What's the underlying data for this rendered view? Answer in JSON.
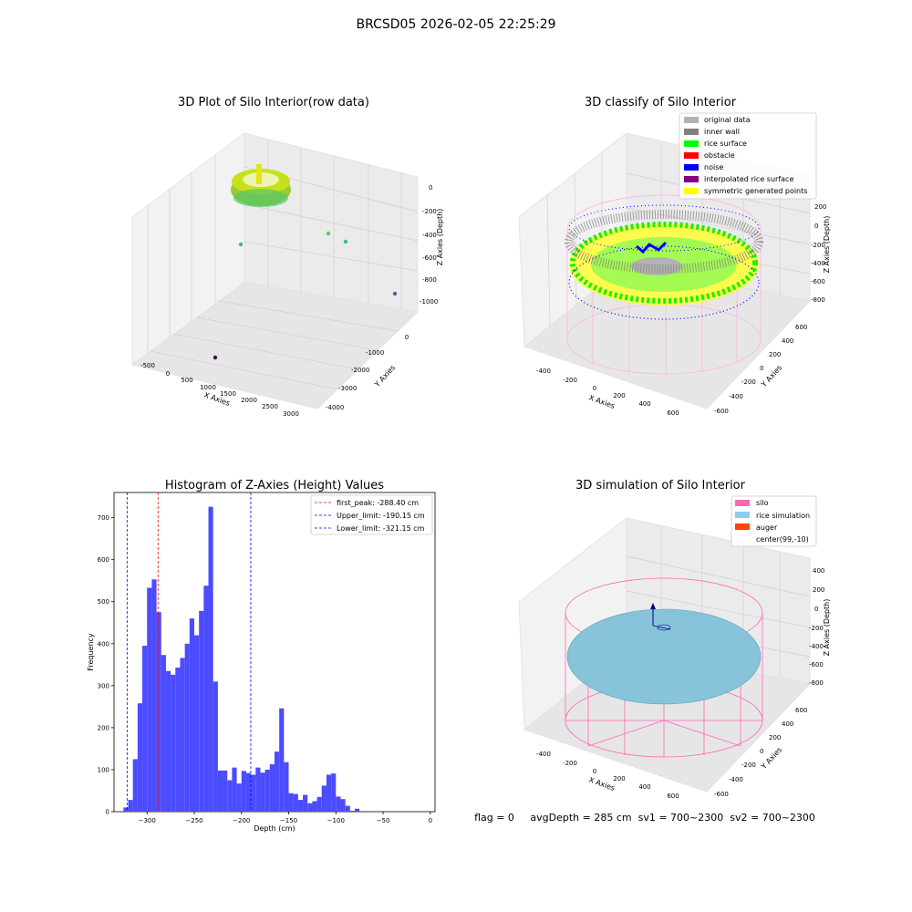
{
  "figure": {
    "suptitle": "BRCSD05 2026-02-05 22:25:29",
    "status_line": "flag = 0     avgDepth = 285 cm  sv1 = 700~2300  sv2 = 700~2300"
  },
  "panels": {
    "raw": {
      "title": "3D Plot of Silo Interior(row data)",
      "xlabel": "X Axies",
      "ylabel": "Y Axies",
      "zlabel": "Z Axies (Depth)",
      "xticks": [
        "-500",
        "0",
        "500",
        "1000",
        "1500",
        "2000",
        "2500",
        "3000"
      ],
      "yticks": [
        "0",
        "-1000",
        "-2000",
        "-3000",
        "-4000"
      ],
      "zticks": [
        "0",
        "-200",
        "-400",
        "-600",
        "-800",
        "-1000"
      ]
    },
    "classify": {
      "title": "3D classify of Silo Interior",
      "xlabel": "X Axies",
      "ylabel": "Y Axies",
      "zlabel": "Z Axies (Depth)",
      "xticks": [
        "-400",
        "-200",
        "0",
        "200",
        "400",
        "600"
      ],
      "yticks": [
        "600",
        "400",
        "200",
        "0",
        "-200",
        "-400",
        "-600"
      ],
      "zticks": [
        "200",
        "0",
        "-200",
        "-400",
        "-600",
        "-800"
      ],
      "legend": [
        {
          "label": "original data",
          "color": "#b3b3b3"
        },
        {
          "label": "inner wall",
          "color": "#808080"
        },
        {
          "label": "rice surface",
          "color": "#00ff00"
        },
        {
          "label": "obstacle",
          "color": "#ff0000"
        },
        {
          "label": "noise",
          "color": "#0000ff"
        },
        {
          "label": "interpolated rice surface",
          "color": "#800080"
        },
        {
          "label": "symmetric generated points",
          "color": "#ffff00"
        }
      ]
    },
    "simulation": {
      "title": "3D simulation of Silo Interior",
      "xlabel": "X Axies",
      "ylabel": "Y Axies",
      "zlabel": "Z Axies (Depth)",
      "xticks": [
        "-400",
        "-200",
        "0",
        "200",
        "400",
        "600"
      ],
      "yticks": [
        "600",
        "400",
        "200",
        "0",
        "-200",
        "-400",
        "-600"
      ],
      "zticks": [
        "400",
        "200",
        "0",
        "-200",
        "-400",
        "-600",
        "-800"
      ],
      "legend": [
        {
          "label": "silo",
          "color": "#ff69b4"
        },
        {
          "label": "rice simulation",
          "color": "#87ceeb"
        },
        {
          "label": "auger",
          "color": "#ff4500"
        },
        {
          "label": "center(99,-10)",
          "color": ""
        }
      ]
    }
  },
  "chart_data": [
    {
      "type": "histogram",
      "title": "Histogram of Z-Axies (Height) Values",
      "xlabel": "Depth (cm)",
      "ylabel": "Frequency",
      "xlim": [
        -335,
        5
      ],
      "ylim": [
        0,
        760
      ],
      "bin_width": 5,
      "xticks": [
        -300,
        -250,
        -200,
        -150,
        -100,
        -50,
        0
      ],
      "yticks": [
        0,
        100,
        200,
        300,
        400,
        500,
        600,
        700
      ],
      "bar_color": "#4b4bff",
      "bins": [
        {
          "x0": -325,
          "x1": -320,
          "count": 10
        },
        {
          "x0": -320,
          "x1": -315,
          "count": 28
        },
        {
          "x0": -315,
          "x1": -310,
          "count": 125
        },
        {
          "x0": -310,
          "x1": -305,
          "count": 258
        },
        {
          "x0": -305,
          "x1": -300,
          "count": 395
        },
        {
          "x0": -300,
          "x1": -295,
          "count": 533
        },
        {
          "x0": -295,
          "x1": -290,
          "count": 553
        },
        {
          "x0": -290,
          "x1": -285,
          "count": 475
        },
        {
          "x0": -285,
          "x1": -280,
          "count": 373
        },
        {
          "x0": -280,
          "x1": -275,
          "count": 335
        },
        {
          "x0": -275,
          "x1": -270,
          "count": 326
        },
        {
          "x0": -270,
          "x1": -265,
          "count": 343
        },
        {
          "x0": -265,
          "x1": -260,
          "count": 366
        },
        {
          "x0": -260,
          "x1": -255,
          "count": 400
        },
        {
          "x0": -255,
          "x1": -250,
          "count": 460
        },
        {
          "x0": -250,
          "x1": -245,
          "count": 420
        },
        {
          "x0": -245,
          "x1": -240,
          "count": 478
        },
        {
          "x0": -240,
          "x1": -235,
          "count": 538
        },
        {
          "x0": -235,
          "x1": -230,
          "count": 726
        },
        {
          "x0": -230,
          "x1": -225,
          "count": 310
        },
        {
          "x0": -225,
          "x1": -220,
          "count": 98
        },
        {
          "x0": -220,
          "x1": -215,
          "count": 98
        },
        {
          "x0": -215,
          "x1": -210,
          "count": 75
        },
        {
          "x0": -210,
          "x1": -205,
          "count": 105
        },
        {
          "x0": -205,
          "x1": -200,
          "count": 67
        },
        {
          "x0": -200,
          "x1": -195,
          "count": 97
        },
        {
          "x0": -195,
          "x1": -190,
          "count": 92
        },
        {
          "x0": -190,
          "x1": -185,
          "count": 88
        },
        {
          "x0": -185,
          "x1": -180,
          "count": 105
        },
        {
          "x0": -180,
          "x1": -175,
          "count": 93
        },
        {
          "x0": -175,
          "x1": -170,
          "count": 100
        },
        {
          "x0": -170,
          "x1": -165,
          "count": 113
        },
        {
          "x0": -165,
          "x1": -160,
          "count": 143
        },
        {
          "x0": -160,
          "x1": -155,
          "count": 246
        },
        {
          "x0": -155,
          "x1": -150,
          "count": 118
        },
        {
          "x0": -150,
          "x1": -145,
          "count": 44
        },
        {
          "x0": -145,
          "x1": -140,
          "count": 42
        },
        {
          "x0": -140,
          "x1": -135,
          "count": 28
        },
        {
          "x0": -135,
          "x1": -130,
          "count": 40
        },
        {
          "x0": -130,
          "x1": -125,
          "count": 20
        },
        {
          "x0": -125,
          "x1": -120,
          "count": 25
        },
        {
          "x0": -120,
          "x1": -115,
          "count": 35
        },
        {
          "x0": -115,
          "x1": -110,
          "count": 62
        },
        {
          "x0": -110,
          "x1": -105,
          "count": 88
        },
        {
          "x0": -105,
          "x1": -100,
          "count": 91
        },
        {
          "x0": -100,
          "x1": -95,
          "count": 36
        },
        {
          "x0": -95,
          "x1": -90,
          "count": 30
        },
        {
          "x0": -90,
          "x1": -85,
          "count": 14
        },
        {
          "x0": -85,
          "x1": -80,
          "count": 2
        },
        {
          "x0": -80,
          "x1": -75,
          "count": 7
        }
      ],
      "vlines": [
        {
          "label": "first_peak: -288.40 cm",
          "x": -288.4,
          "color": "#ff0000"
        },
        {
          "label": "Upper_limit: -190.15 cm",
          "x": -190.15,
          "color": "#0000ff"
        },
        {
          "label": "Lower_limit: -321.15 cm",
          "x": -321.15,
          "color": "#0000ff"
        }
      ],
      "legend_position": "top-right"
    }
  ]
}
